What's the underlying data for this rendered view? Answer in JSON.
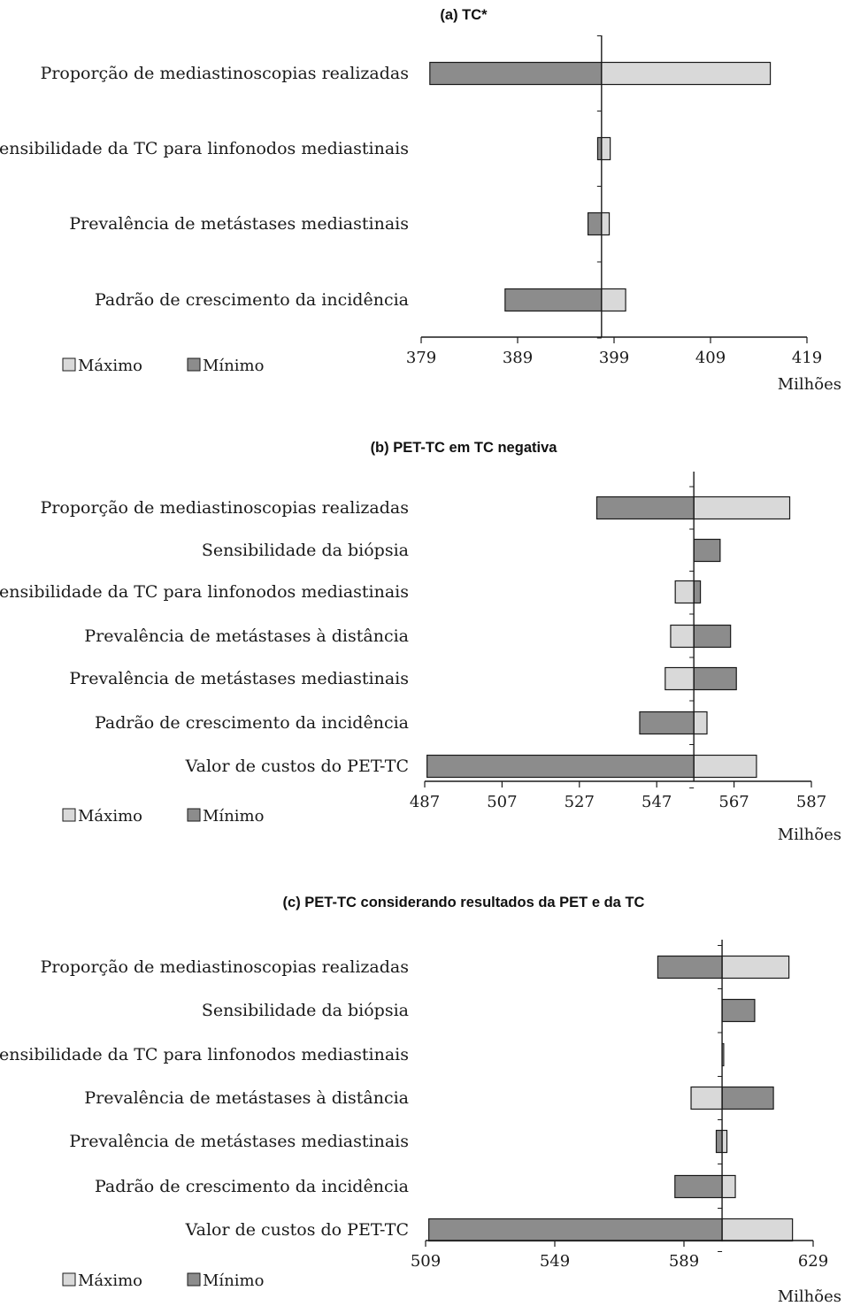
{
  "legend": {
    "max_label": "Máximo",
    "min_label": "Mínimo"
  },
  "colors": {
    "max": "#d9d9d9",
    "min": "#8c8c8c",
    "line": "#1a1a1a"
  },
  "chart_data": [
    {
      "type": "bar",
      "orientation": "horizontal-tornado",
      "title": "(a) TC*",
      "unit_label": "Milhões",
      "base_value": 397.7,
      "xlim": [
        379,
        419
      ],
      "ticks": [
        379,
        389,
        399,
        409,
        419
      ],
      "categories": [
        "Proporção de mediastinoscopias realizadas",
        "Sensibilidade da TC para linfonodos mediastinais",
        "Prevalência de metástases mediastinais",
        "Padrão de crescimento da incidência"
      ],
      "series": [
        {
          "name": "Máximo",
          "values": [
            415.2,
            398.6,
            398.5,
            400.2
          ]
        },
        {
          "name": "Mínimo",
          "values": [
            379.9,
            397.3,
            396.3,
            387.7
          ]
        }
      ]
    },
    {
      "type": "bar",
      "orientation": "horizontal-tornado",
      "title": "(b) PET-TC em TC negativa",
      "unit_label": "Milhões",
      "base_value": 556.6,
      "xlim": [
        487,
        587
      ],
      "ticks": [
        487,
        507,
        527,
        547,
        567,
        587
      ],
      "categories": [
        "Proporção de mediastinoscopias realizadas",
        "Sensibilidade da biópsia",
        "Sensibilidade da TC para linfonodos mediastinais",
        "Prevalência de metástases à distância",
        "Prevalência de metástases mediastinais",
        "Padrão de crescimento da incidência",
        "Valor de custos do PET-TC"
      ],
      "series": [
        {
          "name": "Máximo",
          "values": [
            581.4,
            null,
            551.8,
            550.6,
            549.2,
            560.0,
            572.8
          ]
        },
        {
          "name": "Mínimo",
          "values": [
            531.5,
            563.4,
            558.3,
            566.1,
            567.6,
            542.6,
            487.6
          ]
        }
      ]
    },
    {
      "type": "bar",
      "orientation": "horizontal-tornado",
      "title": "(c) PET-TC considerando resultados da PET e da TC",
      "unit_label": "Milhões",
      "base_value": 600.8,
      "xlim": [
        509,
        629
      ],
      "ticks": [
        509,
        549,
        589,
        629
      ],
      "categories": [
        "Proporção de mediastinoscopias realizadas",
        "Sensibilidade da biópsia",
        "Sensibilidade da TC para linfonodos mediastinais",
        "Prevalência de metástases à distância",
        "Prevalência de metástases mediastinais",
        "Padrão de crescimento da incidência",
        "Valor de custos do PET-TC"
      ],
      "series": [
        {
          "name": "Máximo",
          "values": [
            621.5,
            null,
            601.3,
            591.2,
            602.3,
            604.9,
            622.6
          ]
        },
        {
          "name": "Mínimo",
          "values": [
            580.9,
            610.9,
            null,
            616.7,
            599.0,
            586.2,
            510.0
          ]
        }
      ]
    }
  ]
}
